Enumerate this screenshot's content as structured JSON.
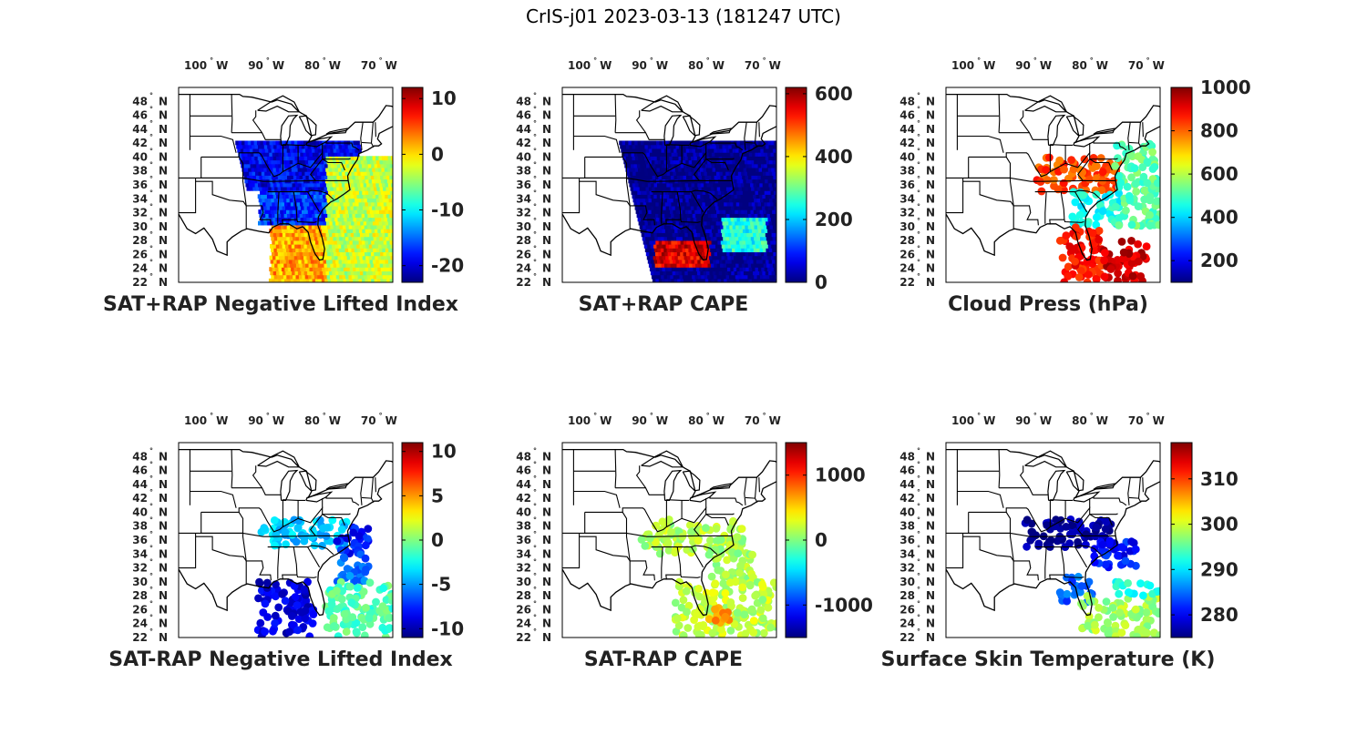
{
  "figure_title": "CrIS-j01 2023-03-13 (181247 UTC)",
  "map": {
    "lon_range": [
      -106,
      -68
    ],
    "lat_range": [
      22,
      50
    ],
    "lon_ticks": [
      {
        "value": -100,
        "label": "100",
        "hemi": "W"
      },
      {
        "value": -90,
        "label": "90",
        "hemi": "W"
      },
      {
        "value": -80,
        "label": "80",
        "hemi": "W"
      },
      {
        "value": -70,
        "label": "70",
        "hemi": "W"
      }
    ],
    "lat_ticks": [
      {
        "value": 48,
        "label": "48",
        "hemi": "N"
      },
      {
        "value": 46,
        "label": "46",
        "hemi": "N"
      },
      {
        "value": 44,
        "label": "44",
        "hemi": "N"
      },
      {
        "value": 42,
        "label": "42",
        "hemi": "N"
      },
      {
        "value": 40,
        "label": "40",
        "hemi": "N"
      },
      {
        "value": 38,
        "label": "38",
        "hemi": "N"
      },
      {
        "value": 36,
        "label": "36",
        "hemi": "N"
      },
      {
        "value": 34,
        "label": "34",
        "hemi": "N"
      },
      {
        "value": 32,
        "label": "32",
        "hemi": "N"
      },
      {
        "value": 30,
        "label": "30",
        "hemi": "N"
      },
      {
        "value": 28,
        "label": "28",
        "hemi": "N"
      },
      {
        "value": 26,
        "label": "26",
        "hemi": "N"
      },
      {
        "value": 24,
        "label": "24",
        "hemi": "N"
      },
      {
        "value": 22,
        "label": "22",
        "hemi": "N"
      }
    ],
    "colormap": "jet"
  },
  "chart_data": [
    {
      "type": "heatmap",
      "title": "SAT+RAP Negative Lifted Index",
      "colorbar": {
        "range": [
          -23,
          12
        ],
        "ticks": [
          10,
          0,
          -10,
          -20
        ],
        "tick_labels": [
          "10",
          "0",
          "-10",
          "-20"
        ]
      },
      "rendering": "swath",
      "swath": {
        "lon_w": -96,
        "lon_e": -68,
        "lat_s": 22,
        "lat_n": 42,
        "lon_sw": -90
      },
      "fields": [
        {
          "region": "land-north",
          "lat": [
            35,
            42
          ],
          "lon": [
            -96,
            -74
          ],
          "value": -19
        },
        {
          "region": "land-south",
          "lat": [
            30,
            35
          ],
          "lon": [
            -92,
            -80
          ],
          "value": -17
        },
        {
          "region": "gulf",
          "lat": [
            22,
            30
          ],
          "lon": [
            -90,
            -80
          ],
          "value": 2
        },
        {
          "region": "atlantic",
          "lat": [
            22,
            40
          ],
          "lon": [
            -80,
            -68
          ],
          "value": -3
        }
      ]
    },
    {
      "type": "heatmap",
      "title": "SAT+RAP CAPE",
      "colorbar": {
        "range": [
          0,
          620
        ],
        "ticks": [
          600,
          400,
          200,
          0
        ],
        "tick_labels": [
          "600",
          "400",
          "200",
          "0"
        ]
      },
      "rendering": "swath",
      "swath": {
        "lon_w": -96,
        "lon_e": -68,
        "lat_s": 22,
        "lat_n": 42,
        "lon_sw": -90
      },
      "fields": [
        {
          "region": "background",
          "lat": [
            22,
            42
          ],
          "lon": [
            -96,
            -68
          ],
          "value": 5
        },
        {
          "region": "gulf-band",
          "lat": [
            24,
            28
          ],
          "lon": [
            -90,
            -80
          ],
          "value": 560
        },
        {
          "region": "atlantic-band",
          "lat": [
            26,
            31
          ],
          "lon": [
            -78,
            -70
          ],
          "value": 250
        }
      ]
    },
    {
      "type": "scatter",
      "title": "Cloud Press (hPa)",
      "colorbar": {
        "range": [
          100,
          1000
        ],
        "ticks": [
          1000,
          800,
          600,
          400,
          200
        ],
        "tick_labels": [
          "1000",
          "800",
          "600",
          "400",
          "200"
        ]
      },
      "rendering": "points",
      "clusters": [
        {
          "lat": [
            35,
            40
          ],
          "lon": [
            -90,
            -75
          ],
          "value": 820
        },
        {
          "lat": [
            30,
            35
          ],
          "lon": [
            -84,
            -75
          ],
          "value": 450
        },
        {
          "lat": [
            22,
            30
          ],
          "lon": [
            -86,
            -78
          ],
          "value": 870
        },
        {
          "lat": [
            30,
            42
          ],
          "lon": [
            -76,
            -68
          ],
          "value": 520
        },
        {
          "lat": [
            22,
            28
          ],
          "lon": [
            -78,
            -70
          ],
          "value": 930
        }
      ]
    },
    {
      "type": "scatter",
      "title": "SAT-RAP Negative Lifted Index",
      "colorbar": {
        "range": [
          -11,
          11
        ],
        "ticks": [
          10,
          5,
          0,
          -5,
          -10
        ],
        "tick_labels": [
          "10",
          "5",
          "0",
          "-5",
          "-10"
        ]
      },
      "rendering": "points",
      "clusters": [
        {
          "lat": [
            35,
            39
          ],
          "lon": [
            -92,
            -76
          ],
          "value": -4
        },
        {
          "lat": [
            34,
            38
          ],
          "lon": [
            -78,
            -72
          ],
          "value": -8
        },
        {
          "lat": [
            30,
            34
          ],
          "lon": [
            -78,
            -72
          ],
          "value": -6
        },
        {
          "lat": [
            22,
            30
          ],
          "lon": [
            -92,
            -82
          ],
          "value": -9
        },
        {
          "lat": [
            22,
            30
          ],
          "lon": [
            -80,
            -68
          ],
          "value": -1
        }
      ]
    },
    {
      "type": "scatter",
      "title": "SAT-RAP CAPE",
      "colorbar": {
        "range": [
          -1500,
          1500
        ],
        "ticks": [
          1000,
          0,
          -1000
        ],
        "tick_labels": [
          "1000",
          "0",
          "-1000"
        ]
      },
      "rendering": "points",
      "clusters": [
        {
          "lat": [
            34,
            39
          ],
          "lon": [
            -92,
            -74
          ],
          "value": 150
        },
        {
          "lat": [
            30,
            35
          ],
          "lon": [
            -80,
            -72
          ],
          "value": 120
        },
        {
          "lat": [
            22,
            30
          ],
          "lon": [
            -86,
            -68
          ],
          "value": 180
        },
        {
          "lat": [
            24,
            27
          ],
          "lon": [
            -80,
            -76
          ],
          "value": 700
        }
      ]
    },
    {
      "type": "scatter",
      "title": "Surface Skin Temperature (K)",
      "colorbar": {
        "range": [
          275,
          318
        ],
        "ticks": [
          310,
          300,
          290,
          280
        ],
        "tick_labels": [
          "310",
          "300",
          "290",
          "280"
        ]
      },
      "rendering": "points",
      "clusters": [
        {
          "lat": [
            35,
            39
          ],
          "lon": [
            -92,
            -76
          ],
          "value": 276
        },
        {
          "lat": [
            32,
            36
          ],
          "lon": [
            -80,
            -72
          ],
          "value": 281
        },
        {
          "lat": [
            27,
            31
          ],
          "lon": [
            -86,
            -80
          ],
          "value": 284
        },
        {
          "lat": [
            22,
            28
          ],
          "lon": [
            -82,
            -68
          ],
          "value": 298
        },
        {
          "lat": [
            28,
            30
          ],
          "lon": [
            -76,
            -68
          ],
          "value": 292
        }
      ]
    }
  ]
}
